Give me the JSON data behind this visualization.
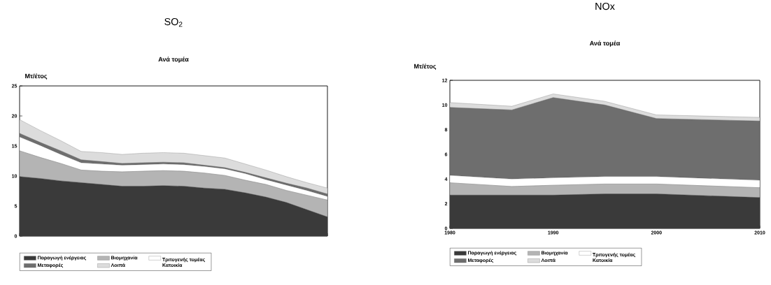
{
  "chart_data": [
    {
      "type": "area",
      "stacked": true,
      "title": "SO$_{2}$",
      "subtitle": "Ανά τομέα",
      "ylabel": "Μτ/έτος",
      "categories": [
        null,
        null,
        null,
        null,
        null,
        null,
        null,
        null,
        null,
        null,
        null,
        null,
        null,
        null,
        null,
        null
      ],
      "ylim": [
        0,
        25
      ],
      "yticks": [
        0,
        5,
        10,
        15,
        20,
        25
      ],
      "tick_labels": "y",
      "legend": "bottom",
      "grid": false,
      "series": [
        {
          "name": "Παραγωγή ενέργειας",
          "color": "#3a3a3a",
          "values": [
            9.9,
            9.6,
            9.2,
            8.9,
            8.6,
            8.3,
            8.3,
            8.4,
            8.3,
            8.0,
            7.8,
            7.2,
            6.5,
            5.6,
            4.4,
            3.2
          ]
        },
        {
          "name": "Βιομηχανία",
          "color": "#b4b4b4",
          "values": [
            4.3,
            3.5,
            2.9,
            2.1,
            2.2,
            2.4,
            2.5,
            2.5,
            2.5,
            2.5,
            2.3,
            2.1,
            2.1,
            2.0,
            2.4,
            2.8
          ]
        },
        {
          "name": "Τριτογενής τομέας Κατοικία",
          "color": "#ffffff",
          "values": [
            2.3,
            2.0,
            1.5,
            1.2,
            1.2,
            1.1,
            1.1,
            1.1,
            1.1,
            1.1,
            1.1,
            1.1,
            0.8,
            0.9,
            0.8,
            0.6
          ]
        },
        {
          "name": "Μεταφορές",
          "color": "#6e6e6e",
          "values": [
            0.6,
            0.5,
            0.6,
            0.5,
            0.4,
            0.3,
            0.3,
            0.3,
            0.3,
            0.2,
            0.2,
            0.2,
            0.3,
            0.3,
            0.4,
            0.4
          ]
        },
        {
          "name": "Λοιπά",
          "color": "#dcdcdc",
          "values": [
            2.3,
            2.0,
            1.7,
            1.4,
            1.5,
            1.5,
            1.6,
            1.6,
            1.6,
            1.6,
            1.6,
            1.4,
            1.3,
            1.1,
            0.9,
            1.0
          ]
        }
      ]
    },
    {
      "type": "area",
      "stacked": true,
      "title": "NOx",
      "subtitle": "Ανά τομέα",
      "ylabel": "Μτ/έτος",
      "x": [
        1980,
        1986,
        1990,
        1995,
        2000,
        2010
      ],
      "xlim": [
        1980,
        2010
      ],
      "xticks": [
        1980,
        1990,
        2000,
        2010
      ],
      "ylim": [
        0,
        12
      ],
      "yticks": [
        0,
        2,
        4,
        6,
        8,
        10,
        12
      ],
      "legend": "bottom",
      "grid": false,
      "series": [
        {
          "name": "Παραγωγή ενέργειας",
          "color": "#3a3a3a",
          "values": [
            2.7,
            2.7,
            2.7,
            2.8,
            2.8,
            2.5
          ]
        },
        {
          "name": "Βιομηχανία",
          "color": "#b4b4b4",
          "values": [
            1.0,
            0.7,
            0.8,
            0.8,
            0.8,
            0.8
          ]
        },
        {
          "name": "Τριτογενής τομέας Κατοικία",
          "color": "#ffffff",
          "values": [
            0.6,
            0.6,
            0.6,
            0.6,
            0.6,
            0.6
          ]
        },
        {
          "name": "Μεταφορές",
          "color": "#6e6e6e",
          "values": [
            5.5,
            5.6,
            6.5,
            5.8,
            4.7,
            4.8
          ]
        },
        {
          "name": "Λοιπά",
          "color": "#dcdcdc",
          "values": [
            0.4,
            0.3,
            0.3,
            0.3,
            0.3,
            0.3
          ]
        }
      ]
    }
  ]
}
